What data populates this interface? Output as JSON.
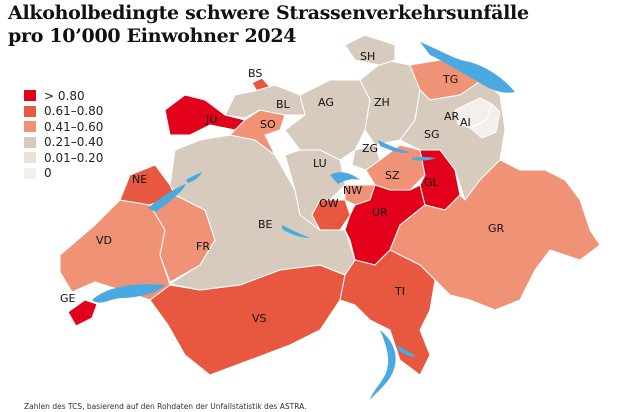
{
  "title_line1": "Alkoholbedingte schwere Strassenverkehrsunfälle",
  "title_line2": "pro 10’000 Einwohner 2024",
  "legend": [
    {
      "label": "> 0.80",
      "color": "#e2001a"
    },
    {
      "label": "0.61–0.80",
      "color": "#e8573f"
    },
    {
      "label": "0.41–0.60",
      "color": "#ef9276"
    },
    {
      "label": "0.21–0.40",
      "color": "#d6cbbd"
    },
    {
      "label": "0.01–0.20",
      "color": "#e7e1d9"
    },
    {
      "label": "0",
      "color": "#f3f0ec"
    }
  ],
  "lake_color": "#4aa9e0",
  "cantons": [
    {
      "code": "GE",
      "class": 0
    },
    {
      "code": "VD",
      "class": 2
    },
    {
      "code": "VS",
      "class": 1
    },
    {
      "code": "FR",
      "class": 2
    },
    {
      "code": "NE",
      "class": 1
    },
    {
      "code": "JU",
      "class": 0
    },
    {
      "code": "BE",
      "class": 3
    },
    {
      "code": "SO",
      "class": 2
    },
    {
      "code": "BS",
      "class": 1
    },
    {
      "code": "BL",
      "class": 3
    },
    {
      "code": "AG",
      "class": 3
    },
    {
      "code": "ZH",
      "class": 3
    },
    {
      "code": "SH",
      "class": 3
    },
    {
      "code": "TG",
      "class": 2
    },
    {
      "code": "SG",
      "class": 3
    },
    {
      "code": "AR",
      "class": 5
    },
    {
      "code": "AI",
      "class": 5
    },
    {
      "code": "LU",
      "class": 3
    },
    {
      "code": "ZG",
      "class": 3
    },
    {
      "code": "SZ",
      "class": 2
    },
    {
      "code": "NW",
      "class": 2
    },
    {
      "code": "OW",
      "class": 1
    },
    {
      "code": "UR",
      "class": 0
    },
    {
      "code": "GL",
      "class": 0
    },
    {
      "code": "GR",
      "class": 2
    },
    {
      "code": "TI",
      "class": 1
    }
  ],
  "footer": "Zahlen des TCS, basierend auf den Rohdaten der Unfallstatistik des ASTRA."
}
